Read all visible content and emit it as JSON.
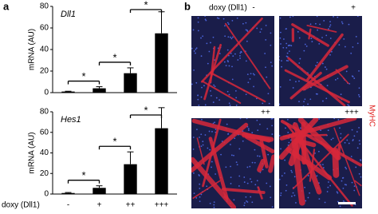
{
  "panel_a": {
    "label": "a",
    "x_axis_label": "doxy (Dll1)"
  },
  "chart_data": [
    {
      "type": "bar",
      "title": "Dll1",
      "y_axis_label": "mRNA (AU)",
      "color": "#000000",
      "values": [
        1,
        4,
        18,
        55
      ],
      "errors": [
        0.3,
        1.5,
        5,
        20
      ],
      "significance": [
        "*",
        "*",
        "*"
      ],
      "ylim": [
        0,
        80
      ],
      "yticks": [
        0,
        20,
        40,
        60,
        80
      ]
    },
    {
      "type": "bar",
      "title": "Hes1",
      "y_axis_label": "mRNA (AU)",
      "color": "#000000",
      "categories": [
        "-",
        "+",
        "++",
        "+++"
      ],
      "values": [
        1,
        6,
        29,
        64
      ],
      "errors": [
        0.5,
        2,
        12,
        20
      ],
      "significance": [
        "*",
        "*",
        "*"
      ],
      "ylim": [
        0,
        80
      ],
      "yticks": [
        0,
        20,
        40,
        60,
        80
      ]
    }
  ],
  "panel_b": {
    "label": "b",
    "header": "doxy (Dll1)",
    "conditions": [
      "-",
      "+",
      "++",
      "+++"
    ],
    "stain": "MyHC"
  }
}
